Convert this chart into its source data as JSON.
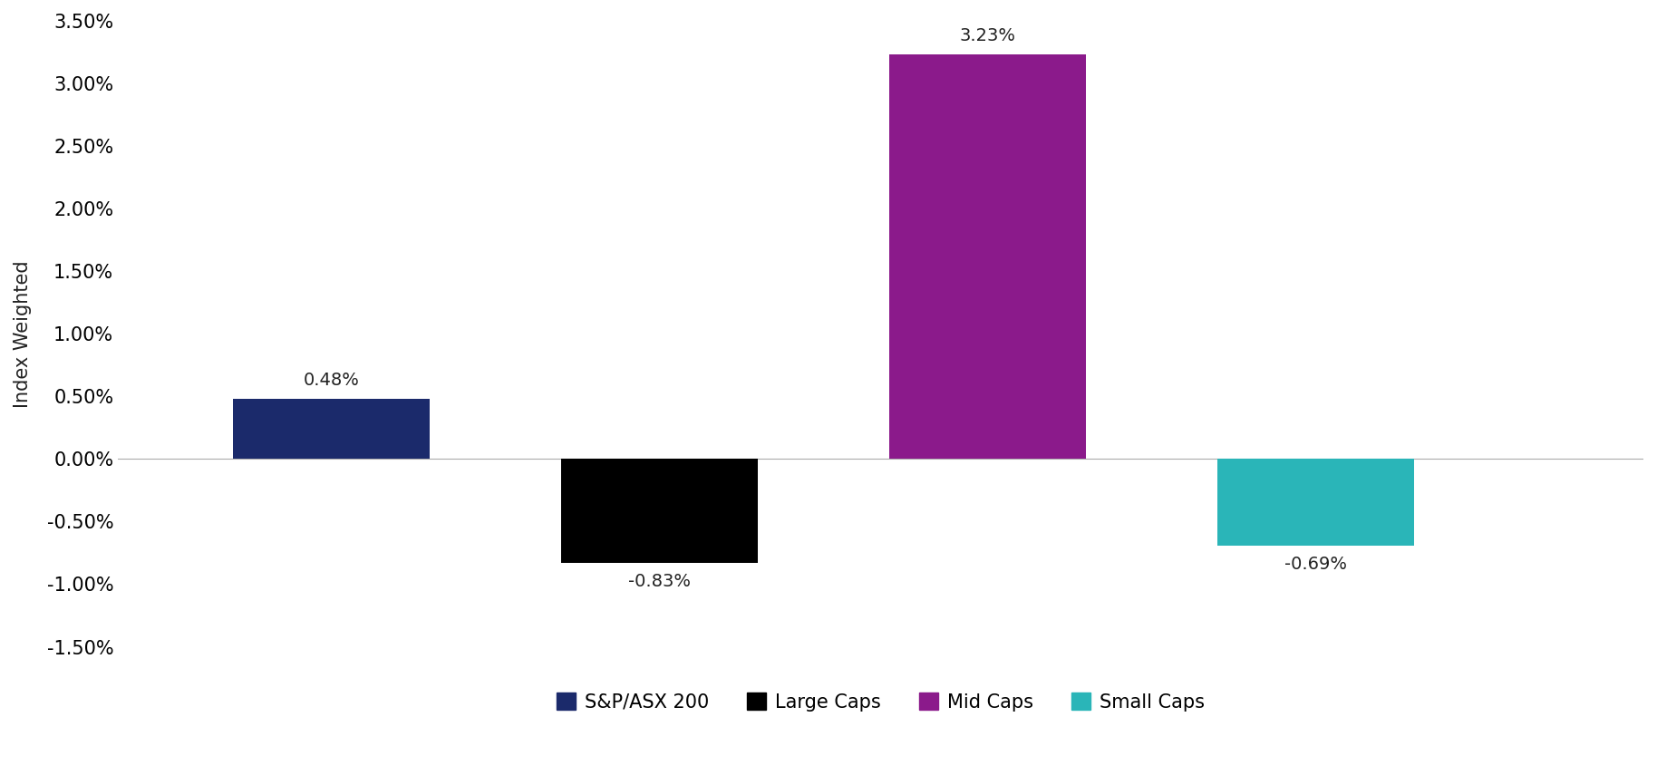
{
  "categories": [
    "S&P/ASX 200",
    "Large Caps",
    "Mid Caps",
    "Small Caps"
  ],
  "values": [
    0.0048,
    -0.0083,
    0.0323,
    -0.0069
  ],
  "bar_colors": [
    "#1b2a6b",
    "#000000",
    "#8b1a8b",
    "#2ab5b8"
  ],
  "bar_labels": [
    "0.48%",
    "-0.83%",
    "3.23%",
    "-0.69%"
  ],
  "ylabel": "Index Weighted",
  "ylim": [
    -0.015,
    0.035
  ],
  "yticks": [
    -0.015,
    -0.01,
    -0.005,
    0.0,
    0.005,
    0.01,
    0.015,
    0.02,
    0.025,
    0.03,
    0.035
  ],
  "ytick_labels": [
    "-1.50%",
    "-1.00%",
    "-0.50%",
    "0.00%",
    "0.50%",
    "1.00%",
    "1.50%",
    "2.00%",
    "2.50%",
    "3.00%",
    "3.50%"
  ],
  "bar_positions": [
    1.5,
    3.5,
    5.5,
    7.5
  ],
  "bar_width": 1.2,
  "xlim": [
    0.2,
    9.5
  ],
  "legend_labels": [
    "S&P/ASX 200",
    "Large Caps",
    "Mid Caps",
    "Small Caps"
  ],
  "legend_colors": [
    "#1b2a6b",
    "#000000",
    "#8b1a8b",
    "#2ab5b8"
  ],
  "background_color": "#ffffff",
  "label_fontsize": 15,
  "tick_fontsize": 15,
  "annotation_fontsize": 14
}
